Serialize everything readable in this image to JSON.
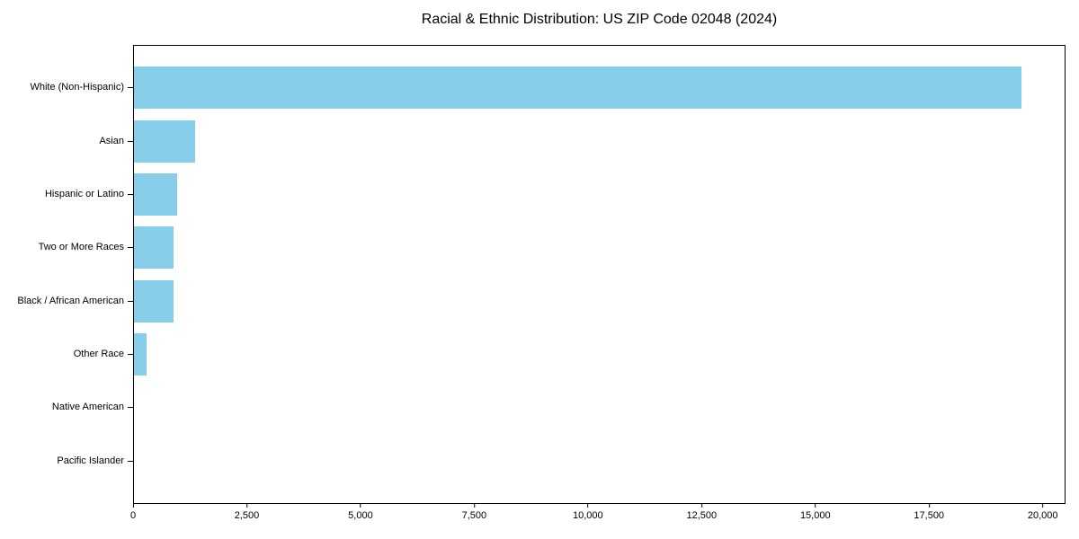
{
  "chart_data": {
    "type": "bar",
    "orientation": "horizontal",
    "title": "Racial & Ethnic Distribution: US ZIP Code 02048 (2024)",
    "categories": [
      "White (Non-Hispanic)",
      "Asian",
      "Hispanic or Latino",
      "Two or More Races",
      "Black / African American",
      "Other Race",
      "Native American",
      "Pacific Islander"
    ],
    "values": [
      19550,
      1340,
      960,
      875,
      870,
      270,
      0,
      0
    ],
    "xlabel": "",
    "ylabel": "",
    "xlim": [
      0,
      20500
    ],
    "x_tick_values": [
      0,
      2500,
      5000,
      7500,
      10000,
      12500,
      15000,
      17500,
      20000
    ],
    "x_tick_labels": [
      "0",
      "2,500",
      "5,000",
      "7,500",
      "10,000",
      "12,500",
      "15,000",
      "17,500",
      "20,000"
    ],
    "bar_color": "#87CEEB",
    "spine_color": "#000000",
    "grid": false,
    "legend": null
  }
}
